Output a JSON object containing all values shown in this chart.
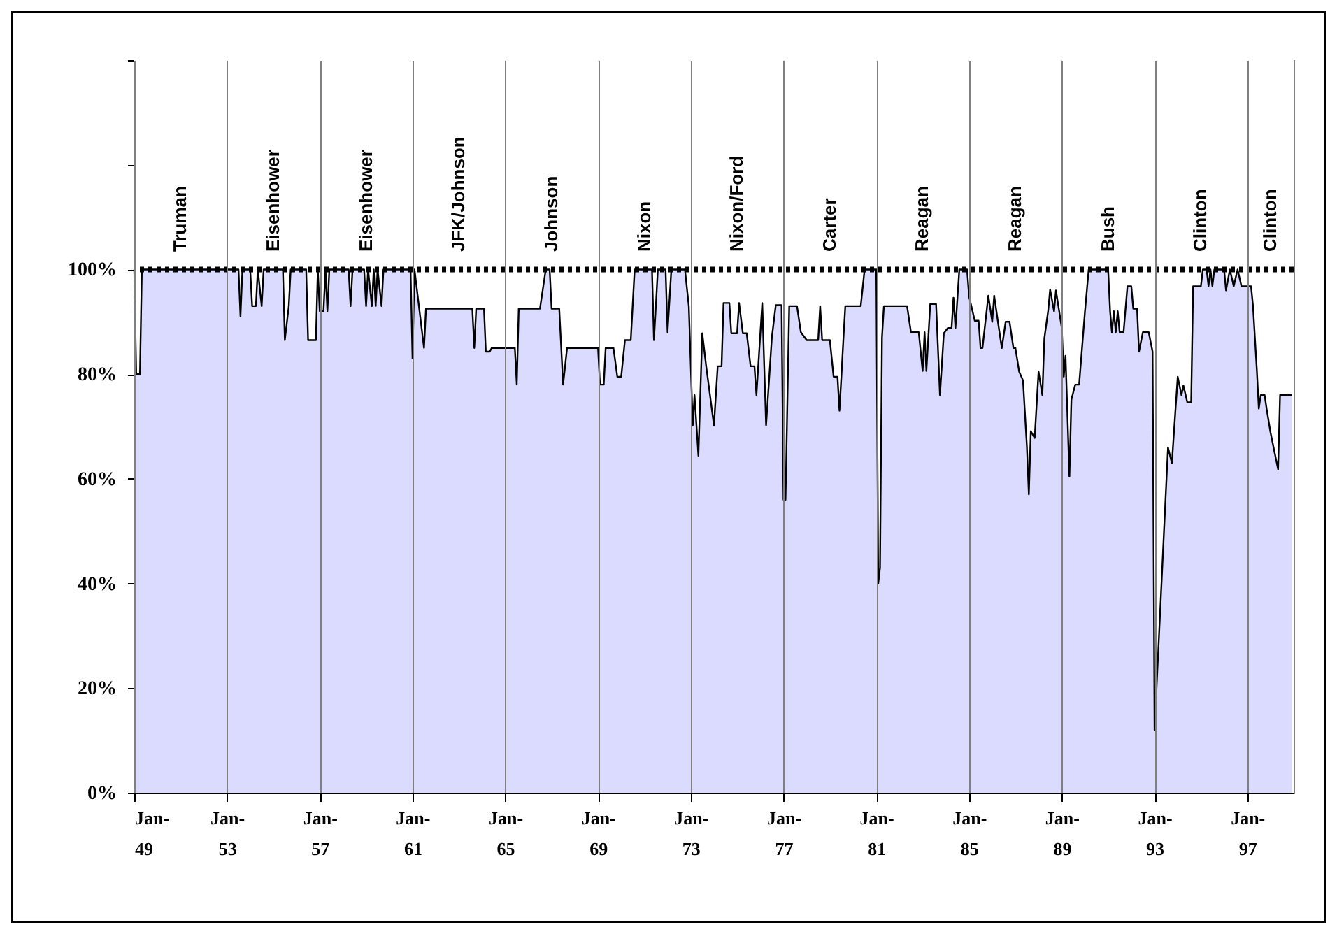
{
  "chart_data": {
    "type": "area",
    "x": [
      "1949-01",
      "1949-02",
      "1949-04",
      "1949-05",
      "1953-07",
      "1953-08",
      "1953-09",
      "1954-01",
      "1954-02",
      "1954-04",
      "1954-05",
      "1954-07",
      "1954-08",
      "1955-06",
      "1955-07",
      "1955-09",
      "1955-10",
      "1956-06",
      "1956-07",
      "1956-11",
      "1956-12",
      "1957-01",
      "1957-03",
      "1957-04",
      "1957-05",
      "1957-06",
      "1958-04",
      "1958-05",
      "1958-06",
      "1958-12",
      "1959-01",
      "1959-02",
      "1959-04",
      "1959-05",
      "1959-06",
      "1959-07",
      "1959-09",
      "1959-10",
      "1960-12",
      "1961-01",
      "1961-02",
      "1961-07",
      "1961-08",
      "1963-08",
      "1963-09",
      "1963-10",
      "1964-02",
      "1964-03",
      "1964-05",
      "1964-06",
      "1965-06",
      "1965-07",
      "1965-08",
      "1966-07",
      "1966-10",
      "1966-12",
      "1967-01",
      "1967-05",
      "1967-07",
      "1967-09",
      "1969-01",
      "1969-02",
      "1969-04",
      "1969-05",
      "1969-09",
      "1969-11",
      "1970-01",
      "1970-03",
      "1970-06",
      "1970-08",
      "1971-05",
      "1971-06",
      "1971-07",
      "1971-08",
      "1971-12",
      "1972-01",
      "1972-03",
      "1972-10",
      "1972-12",
      "1973-02",
      "1973-03",
      "1973-05",
      "1973-07",
      "1973-09",
      "1974-01",
      "1974-03",
      "1974-05",
      "1974-06",
      "1974-09",
      "1974-10",
      "1975-01",
      "1975-02",
      "1975-04",
      "1975-06",
      "1975-08",
      "1975-10",
      "1975-11",
      "1976-02",
      "1976-04",
      "1976-07",
      "1976-09",
      "1976-12",
      "1977-01",
      "1977-02",
      "1977-04",
      "1977-08",
      "1977-10",
      "1978-01",
      "1978-07",
      "1978-08",
      "1978-09",
      "1979-01",
      "1979-03",
      "1979-05",
      "1979-06",
      "1979-07",
      "1979-08",
      "1979-09",
      "1979-12",
      "1980-05",
      "1980-07",
      "1981-01",
      "1981-02",
      "1981-03",
      "1981-04",
      "1981-05",
      "1982-05",
      "1982-07",
      "1982-11",
      "1983-01",
      "1983-02",
      "1983-03",
      "1983-05",
      "1983-08",
      "1983-10",
      "1983-12",
      "1984-02",
      "1984-04",
      "1984-05",
      "1984-06",
      "1984-08",
      "1984-12",
      "1985-01",
      "1985-04",
      "1985-06",
      "1985-07",
      "1985-08",
      "1985-11",
      "1986-01",
      "1986-02",
      "1986-04",
      "1986-06",
      "1986-08",
      "1986-10",
      "1986-12",
      "1987-01",
      "1987-03",
      "1987-05",
      "1987-07",
      "1987-08",
      "1987-09",
      "1987-11",
      "1988-01",
      "1988-03",
      "1988-04",
      "1988-06",
      "1988-07",
      "1988-09",
      "1988-10",
      "1989-01",
      "1989-02",
      "1989-03",
      "1989-05",
      "1989-06",
      "1989-08",
      "1989-10",
      "1990-01",
      "1990-03",
      "1991-01",
      "1991-02",
      "1991-03",
      "1991-04",
      "1991-05",
      "1991-06",
      "1991-07",
      "1991-09",
      "1991-11",
      "1992-01",
      "1992-02",
      "1992-04",
      "1992-05",
      "1992-07",
      "1992-10",
      "1992-12",
      "1993-01",
      "1993-02",
      "1993-08",
      "1993-10",
      "1994-01",
      "1994-03",
      "1994-04",
      "1994-06",
      "1994-08",
      "1994-09",
      "1995-01",
      "1995-02",
      "1995-04",
      "1995-05",
      "1995-06",
      "1995-07",
      "1995-08",
      "1996-01",
      "1996-02",
      "1996-04",
      "1996-06",
      "1996-08",
      "1996-10",
      "1997-03",
      "1997-04",
      "1997-06",
      "1997-07",
      "1997-08",
      "1997-10",
      "1997-11",
      "1998-01",
      "1998-03",
      "1998-05",
      "1998-06",
      "1998-12"
    ],
    "series": [
      {
        "color": "#ccccff",
        "values": [
          100,
          80,
          80,
          100,
          100,
          91,
          100,
          100,
          93,
          93,
          100,
          93,
          100,
          100,
          86.5,
          93,
          100,
          100,
          86.5,
          86.5,
          100,
          92,
          92,
          100,
          92,
          100,
          100,
          93,
          100,
          100,
          93,
          100,
          93,
          100,
          93,
          100,
          93,
          100,
          100,
          83,
          100,
          85,
          92.5,
          92.5,
          85,
          92.5,
          92.5,
          84.3,
          84.3,
          85,
          85,
          78,
          92.5,
          92.5,
          100,
          100,
          92.5,
          92.5,
          78,
          85,
          85,
          78,
          78,
          85,
          85,
          79.5,
          79.5,
          86.5,
          86.5,
          100,
          100,
          86.5,
          93,
          100,
          100,
          88,
          100,
          100,
          93,
          70.2,
          76,
          64.4,
          87.8,
          81.5,
          70.2,
          81.5,
          81.5,
          93.6,
          93.6,
          87.8,
          87.8,
          93.6,
          87.8,
          87.8,
          81.5,
          81.5,
          76,
          93.6,
          70.2,
          87,
          93.2,
          93.2,
          56,
          56,
          93,
          93,
          88,
          86.5,
          86.5,
          93,
          86.5,
          86.5,
          79.5,
          79.5,
          73,
          79.5,
          86.5,
          93,
          93,
          93,
          100,
          100,
          40,
          43,
          87,
          93,
          93,
          88,
          88,
          80.6,
          88,
          80.6,
          93.4,
          93.4,
          76,
          87.8,
          88.8,
          88.8,
          94.6,
          88.8,
          100,
          100,
          94.9,
          90.2,
          90.2,
          85,
          85,
          95,
          90,
          95,
          90,
          85,
          90,
          90,
          85,
          85,
          80.5,
          78.8,
          66.2,
          57,
          69.1,
          67.8,
          80.5,
          76,
          86.8,
          92.2,
          96.2,
          92,
          96,
          88.8,
          79.5,
          83.5,
          60.4,
          75.1,
          78,
          78,
          92,
          100,
          100,
          92,
          88,
          92,
          88,
          92,
          88,
          88,
          96.8,
          96.8,
          92.5,
          92.5,
          84.3,
          88,
          88,
          84.3,
          12,
          20,
          66,
          63,
          79.5,
          76,
          77.8,
          74.6,
          74.6,
          96.8,
          96.8,
          100,
          100,
          96.8,
          100,
          96.8,
          100,
          100,
          96,
          100,
          96.8,
          100,
          96.8,
          96.8,
          93,
          80.6,
          73.4,
          76,
          76,
          73.4,
          68.9,
          65.4,
          61.8,
          76,
          76
        ]
      }
    ],
    "xlim": [
      "1949-01",
      "1999-01"
    ],
    "xticks": [
      {
        "value": "1949-01",
        "label": "Jan-49"
      },
      {
        "value": "1953-01",
        "label": "Jan-53"
      },
      {
        "value": "1957-01",
        "label": "Jan-57"
      },
      {
        "value": "1961-01",
        "label": "Jan-61"
      },
      {
        "value": "1965-01",
        "label": "Jan-65"
      },
      {
        "value": "1969-01",
        "label": "Jan-69"
      },
      {
        "value": "1973-01",
        "label": "Jan-73"
      },
      {
        "value": "1977-01",
        "label": "Jan-77"
      },
      {
        "value": "1981-01",
        "label": "Jan-81"
      },
      {
        "value": "1985-01",
        "label": "Jan-85"
      },
      {
        "value": "1989-01",
        "label": "Jan-89"
      },
      {
        "value": "1993-01",
        "label": "Jan-93"
      },
      {
        "value": "1997-01",
        "label": "Jan-97"
      }
    ],
    "ylim": [
      0,
      140
    ],
    "yticks": [
      {
        "value": 0,
        "label": "0%"
      },
      {
        "value": 20,
        "label": "20%"
      },
      {
        "value": 40,
        "label": "40%"
      },
      {
        "value": 60,
        "label": "60%"
      },
      {
        "value": 80,
        "label": "80%"
      },
      {
        "value": 100,
        "label": "100%"
      },
      {
        "value": 120,
        "label": null
      },
      {
        "value": 140,
        "label": null
      }
    ],
    "grid": "x",
    "ref_lines": [
      {
        "axis": "y",
        "value": 100,
        "label": null,
        "color": "#000000",
        "line_style": "dotted"
      }
    ],
    "bands": [
      {
        "axis": "x",
        "from": "1949-01",
        "to": "1953-01",
        "label": "Truman",
        "color": "#ffffff"
      },
      {
        "axis": "x",
        "from": "1953-01",
        "to": "1957-01",
        "label": "Eisenhower"
      },
      {
        "axis": "x",
        "from": "1957-01",
        "to": "1961-01",
        "label": "Eisenhower"
      },
      {
        "axis": "x",
        "from": "1961-01",
        "to": "1965-01",
        "label": "JFK/Johnson"
      },
      {
        "axis": "x",
        "from": "1965-01",
        "to": "1969-01",
        "label": "Johnson"
      },
      {
        "axis": "x",
        "from": "1969-01",
        "to": "1973-01",
        "label": "Nixon"
      },
      {
        "axis": "x",
        "from": "1973-01",
        "to": "1977-01",
        "label": "Nixon/Ford"
      },
      {
        "axis": "x",
        "from": "1977-01",
        "to": "1981-01",
        "label": "Carter"
      },
      {
        "axis": "x",
        "from": "1981-01",
        "to": "1985-01",
        "label": "Reagan"
      },
      {
        "axis": "x",
        "from": "1985-01",
        "to": "1989-01",
        "label": "Reagan"
      },
      {
        "axis": "x",
        "from": "1989-01",
        "to": "1993-01",
        "label": "Bush"
      },
      {
        "axis": "x",
        "from": "1993-01",
        "to": "1997-01",
        "label": "Clinton"
      },
      {
        "axis": "x",
        "from": "1997-01",
        "to": "1999-01",
        "label": "Clinton"
      }
    ]
  }
}
